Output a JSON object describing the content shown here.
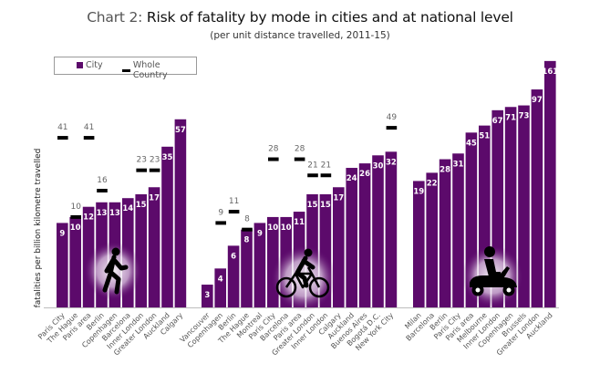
{
  "header": {
    "title_prefix": "Chart 2: ",
    "title_main": "Risk of fatality by mode in cities and at national level",
    "subtitle": "(per unit distance travelled, 2011-15)"
  },
  "colors": {
    "city_bar": "#5c0a6b",
    "country_marker": "#000000",
    "bar_label": "#ffffff",
    "country_label": "#666666"
  },
  "chart_data": {
    "type": "bar",
    "title": "Chart 2: Risk of fatality by mode in cities and at national level",
    "subtitle": "(per unit distance travelled, 2011-15)",
    "xlabel": "",
    "ylabel": "fatalities per billion kilometre travelled",
    "yscale": "log",
    "ylim": [
      2,
      180
    ],
    "grid": false,
    "legend": {
      "placement": "top-left",
      "entries": [
        {
          "name": "City",
          "marker": "bar"
        },
        {
          "name": "Whole Country",
          "marker": "dash"
        }
      ]
    },
    "groups": [
      {
        "mode": "Walking",
        "icon": "pedestrian-icon",
        "categories": [
          "Paris City",
          "The Hague",
          "Paris area",
          "Berlin",
          "Copenhagen",
          "Barcelona",
          "Inner London",
          "Greater London",
          "Auckland",
          "Calgary"
        ],
        "city": [
          9,
          10,
          12,
          13,
          13,
          14,
          15,
          17,
          35,
          57
        ],
        "whole_country": [
          41,
          10,
          41,
          16,
          null,
          null,
          23,
          23,
          null,
          null
        ]
      },
      {
        "mode": "Cycling",
        "icon": "bicycle-icon",
        "categories": [
          "Vancouver",
          "Copenhagen",
          "Berlin",
          "The Hague",
          "Montreal",
          "Paris City",
          "Barcelona",
          "Paris area",
          "Greater London",
          "Inner London",
          "Calgary",
          "Auckland",
          "Buenos Aires",
          "Bogotá D.C.",
          "New York City"
        ],
        "city": [
          3,
          4,
          6,
          8,
          9,
          10,
          10,
          11,
          15,
          15,
          17,
          24,
          26,
          30,
          32
        ],
        "whole_country": [
          null,
          9,
          11,
          8,
          null,
          28,
          null,
          28,
          21,
          21,
          null,
          null,
          null,
          null,
          49
        ]
      },
      {
        "mode": "Motorcycling",
        "icon": "motorcycle-icon",
        "categories": [
          "Milan",
          "Barcelona",
          "Berlin",
          "Paris City",
          "Paris area",
          "Melbourne",
          "Inner London",
          "Copenhagen",
          "Brussels",
          "Greater London",
          "Auckland"
        ],
        "city": [
          19,
          22,
          28,
          31,
          45,
          51,
          67,
          71,
          73,
          97,
          161
        ],
        "whole_country": [
          null,
          null,
          null,
          null,
          null,
          null,
          null,
          null,
          null,
          null,
          null
        ]
      }
    ]
  }
}
